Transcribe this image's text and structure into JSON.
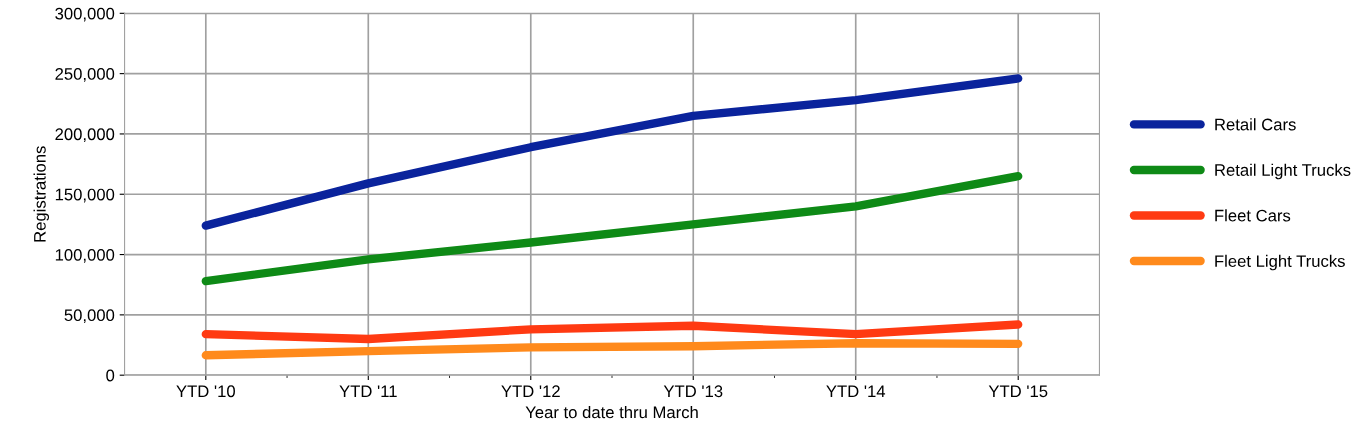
{
  "chart_data": {
    "type": "line",
    "xlabel": "Year to date thru March",
    "ylabel": "Registrations",
    "categories": [
      "YTD '10",
      "YTD '11",
      "YTD '12",
      "YTD '13",
      "YTD '14",
      "YTD '15"
    ],
    "series": [
      {
        "name": "Retail Cars",
        "color": "#0a239c",
        "values": [
          124000,
          159000,
          189000,
          215000,
          228000,
          246000
        ]
      },
      {
        "name": "Retail Light Trucks",
        "color": "#0e8a16",
        "values": [
          78000,
          96000,
          110000,
          125000,
          140000,
          165000
        ]
      },
      {
        "name": "Fleet Cars",
        "color": "#ff3a12",
        "values": [
          34000,
          30000,
          38000,
          41000,
          34000,
          42000
        ]
      },
      {
        "name": "Fleet Light Trucks",
        "color": "#ff8a1c",
        "values": [
          16500,
          20000,
          23000,
          24000,
          26500,
          26000
        ]
      }
    ],
    "ylim": [
      0,
      300000
    ],
    "yticks": [
      {
        "value": 0,
        "label": "0"
      },
      {
        "value": 50000,
        "label": "50,000"
      },
      {
        "value": 100000,
        "label": "100,000"
      },
      {
        "value": 150000,
        "label": "150,000"
      },
      {
        "value": 200000,
        "label": "200,000"
      },
      {
        "value": 250000,
        "label": "250,000"
      },
      {
        "value": 300000,
        "label": "300,000"
      }
    ],
    "grid": true,
    "legend": "right",
    "marker": "none",
    "line_style": "solid"
  }
}
